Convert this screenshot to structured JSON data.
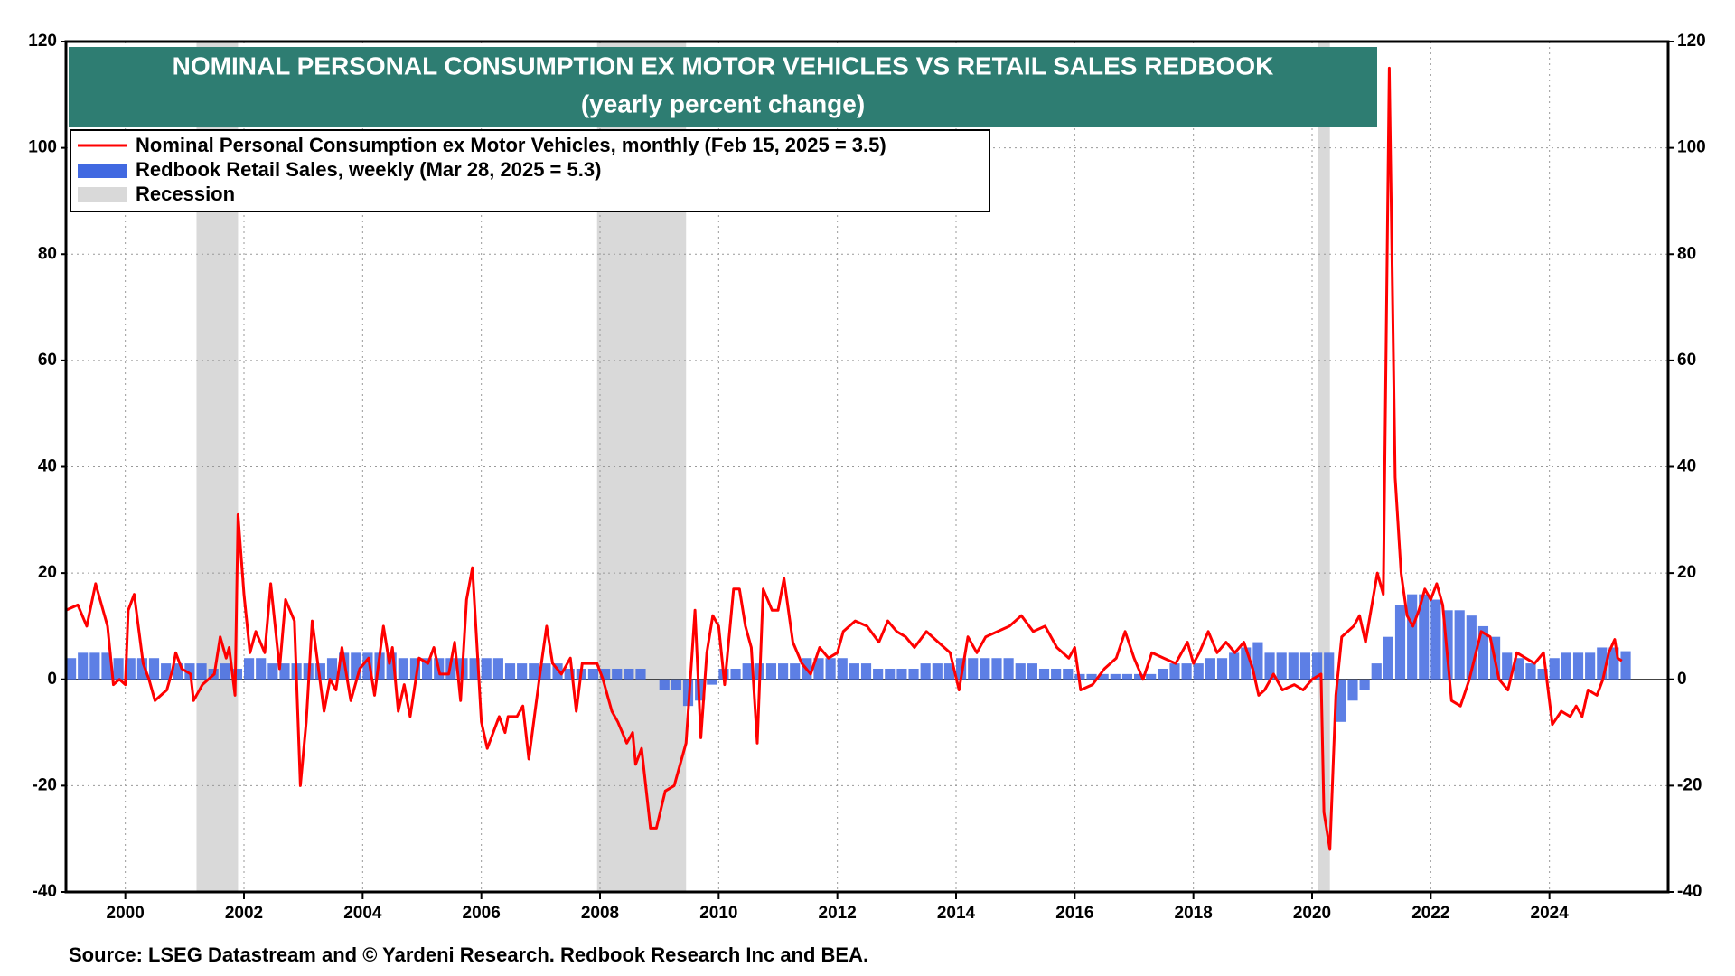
{
  "chart_data": {
    "type": "line",
    "title": "NOMINAL PERSONAL CONSUMPTION  EX MOTOR VEHICLES VS RETAIL SALES REDBOOK",
    "subtitle": "(yearly percent change)",
    "source": "Source: LSEG Datastream and © Yardeni Research. Redbook Research Inc and BEA.",
    "xlim": [
      1999,
      2026
    ],
    "xticks": [
      2000,
      2002,
      2004,
      2006,
      2008,
      2010,
      2012,
      2014,
      2016,
      2018,
      2020,
      2022,
      2024
    ],
    "ylim": [
      -40,
      120
    ],
    "yticks": [
      -40,
      -20,
      0,
      20,
      40,
      60,
      80,
      100,
      120
    ],
    "y2lim": [
      -40,
      120
    ],
    "y2ticks": [
      -40,
      -20,
      0,
      20,
      40,
      60,
      80,
      100,
      120
    ],
    "grid": true,
    "recession": {
      "name": "Recession",
      "color": "#d9d9d9",
      "periods": [
        [
          2001.2,
          2001.9
        ],
        [
          2007.95,
          2009.45
        ],
        [
          2020.1,
          2020.3
        ]
      ]
    },
    "series": [
      {
        "name": "Nominal Personal Consumption ex Motor Vehicles, monthly (Feb 15, 2025 = 3.5)",
        "type": "line",
        "color": "#ff0000",
        "x": [
          1999.0,
          1999.2,
          1999.35,
          1999.5,
          1999.7,
          1999.8,
          1999.9,
          2000.0,
          2000.05,
          2000.15,
          2000.3,
          2000.4,
          2000.5,
          2000.7,
          2000.8,
          2000.85,
          2000.95,
          2001.1,
          2001.15,
          2001.3,
          2001.5,
          2001.6,
          2001.7,
          2001.75,
          2001.85,
          2001.9,
          2002.0,
          2002.1,
          2002.2,
          2002.35,
          2002.45,
          2002.6,
          2002.7,
          2002.85,
          2002.95,
          2003.05,
          2003.15,
          2003.35,
          2003.45,
          2003.55,
          2003.65,
          2003.8,
          2003.95,
          2004.1,
          2004.2,
          2004.35,
          2004.45,
          2004.5,
          2004.6,
          2004.7,
          2004.8,
          2004.95,
          2005.1,
          2005.2,
          2005.3,
          2005.45,
          2005.55,
          2005.65,
          2005.75,
          2005.85,
          2006.0,
          2006.1,
          2006.2,
          2006.3,
          2006.4,
          2006.45,
          2006.6,
          2006.7,
          2006.8,
          2007.0,
          2007.1,
          2007.2,
          2007.35,
          2007.5,
          2007.6,
          2007.7,
          2007.95,
          2008.05,
          2008.2,
          2008.3,
          2008.45,
          2008.55,
          2008.6,
          2008.7,
          2008.85,
          2008.95,
          2009.1,
          2009.25,
          2009.45,
          2009.6,
          2009.7,
          2009.8,
          2009.9,
          2010.0,
          2010.1,
          2010.25,
          2010.35,
          2010.45,
          2010.55,
          2010.65,
          2010.75,
          2010.9,
          2011.0,
          2011.1,
          2011.25,
          2011.4,
          2011.55,
          2011.7,
          2011.85,
          2012.0,
          2012.1,
          2012.3,
          2012.5,
          2012.7,
          2012.85,
          2013.0,
          2013.15,
          2013.3,
          2013.5,
          2013.7,
          2013.9,
          2014.05,
          2014.2,
          2014.35,
          2014.5,
          2014.7,
          2014.9,
          2015.1,
          2015.3,
          2015.5,
          2015.7,
          2015.9,
          2016.0,
          2016.1,
          2016.3,
          2016.5,
          2016.7,
          2016.85,
          2017.0,
          2017.15,
          2017.3,
          2017.5,
          2017.7,
          2017.9,
          2018.0,
          2018.1,
          2018.25,
          2018.4,
          2018.55,
          2018.7,
          2018.85,
          2019.0,
          2019.1,
          2019.2,
          2019.35,
          2019.5,
          2019.7,
          2019.85,
          2020.0,
          2020.15,
          2020.2,
          2020.3,
          2020.4,
          2020.5,
          2020.7,
          2020.8,
          2020.9,
          2021.1,
          2021.2,
          2021.3,
          2021.4,
          2021.5,
          2021.6,
          2021.7,
          2021.8,
          2021.9,
          2022.0,
          2022.1,
          2022.2,
          2022.35,
          2022.5,
          2022.65,
          2022.85,
          2023.0,
          2023.15,
          2023.3,
          2023.45,
          2023.6,
          2023.75,
          2023.9,
          2024.05,
          2024.2,
          2024.35,
          2024.45,
          2024.55,
          2024.65,
          2024.8,
          2024.9,
          2025.0,
          2025.1,
          2025.15,
          2025.22
        ],
        "values": [
          13,
          14,
          10,
          18,
          10,
          -1,
          0,
          -1,
          13,
          16,
          3,
          0,
          -4,
          -2,
          2,
          5,
          2,
          1,
          -4,
          -1,
          1,
          8,
          4,
          6,
          -3,
          31,
          16,
          5,
          9,
          5,
          18,
          2,
          15,
          11,
          -20,
          -8,
          11,
          -6,
          0,
          -2,
          6,
          -4,
          2,
          4,
          -3,
          10,
          3,
          6,
          -6,
          -1,
          -7,
          4,
          3,
          6,
          1,
          1,
          7,
          -4,
          15,
          21,
          -8,
          -13,
          -10,
          -7,
          -10,
          -7,
          -7,
          -5,
          -15,
          2,
          10,
          3,
          1,
          4,
          -6,
          3,
          3,
          0,
          -6,
          -8,
          -12,
          -10,
          -16,
          -13,
          -28,
          -28,
          -21,
          -20,
          -12,
          13,
          -11,
          5,
          12,
          10,
          -1,
          17,
          17,
          10,
          6,
          -12,
          17,
          13,
          13,
          19,
          7,
          3,
          1,
          6,
          4,
          5,
          9,
          11,
          10,
          7,
          11,
          9,
          8,
          6,
          9,
          7,
          5,
          -2,
          8,
          5,
          8,
          9,
          10,
          12,
          9,
          10,
          6,
          4,
          6,
          -2,
          -1,
          2,
          4,
          9,
          4,
          0,
          5,
          4,
          3,
          7,
          3,
          5,
          9,
          5,
          7,
          5,
          7,
          2,
          -3,
          -2,
          1,
          -2,
          -1,
          -2,
          0,
          1,
          -25,
          -32,
          -3,
          8,
          10,
          12,
          7,
          20,
          16,
          115,
          38,
          20,
          12,
          10,
          13,
          17,
          15,
          18,
          14,
          -4,
          -5,
          0,
          9,
          8,
          0,
          -2,
          5,
          4,
          3,
          5,
          -8.5,
          -6,
          -7,
          -5,
          -7,
          -2,
          -3,
          0,
          5,
          7.5,
          4,
          3.5
        ]
      },
      {
        "name": "Redbook Retail Sales, weekly (Mar 28, 2025 = 5.3)",
        "type": "bar",
        "color": "#4169e1",
        "x": [
          1999.0,
          1999.2,
          1999.4,
          1999.6,
          1999.8,
          2000.0,
          2000.2,
          2000.4,
          2000.6,
          2000.8,
          2001.0,
          2001.2,
          2001.4,
          2001.6,
          2001.8,
          2002.0,
          2002.2,
          2002.4,
          2002.6,
          2002.8,
          2003.0,
          2003.2,
          2003.4,
          2003.6,
          2003.8,
          2004.0,
          2004.2,
          2004.4,
          2004.6,
          2004.8,
          2005.0,
          2005.2,
          2005.4,
          2005.6,
          2005.8,
          2006.0,
          2006.2,
          2006.4,
          2006.6,
          2006.8,
          2007.0,
          2007.2,
          2007.4,
          2007.6,
          2007.8,
          2008.0,
          2008.2,
          2008.4,
          2008.6,
          2008.8,
          2009.0,
          2009.2,
          2009.4,
          2009.6,
          2009.8,
          2010.0,
          2010.2,
          2010.4,
          2010.6,
          2010.8,
          2011.0,
          2011.2,
          2011.4,
          2011.6,
          2011.8,
          2012.0,
          2012.2,
          2012.4,
          2012.6,
          2012.8,
          2013.0,
          2013.2,
          2013.4,
          2013.6,
          2013.8,
          2014.0,
          2014.2,
          2014.4,
          2014.6,
          2014.8,
          2015.0,
          2015.2,
          2015.4,
          2015.6,
          2015.8,
          2016.0,
          2016.2,
          2016.4,
          2016.6,
          2016.8,
          2017.0,
          2017.2,
          2017.4,
          2017.6,
          2017.8,
          2018.0,
          2018.2,
          2018.4,
          2018.6,
          2018.8,
          2019.0,
          2019.2,
          2019.4,
          2019.6,
          2019.8,
          2020.0,
          2020.2,
          2020.4,
          2020.6,
          2020.8,
          2021.0,
          2021.2,
          2021.4,
          2021.6,
          2021.8,
          2022.0,
          2022.2,
          2022.4,
          2022.6,
          2022.8,
          2023.0,
          2023.2,
          2023.4,
          2023.6,
          2023.8,
          2024.0,
          2024.2,
          2024.4,
          2024.6,
          2024.8,
          2025.0,
          2025.2
        ],
        "values": [
          4,
          5,
          5,
          5,
          4,
          4,
          4,
          4,
          3,
          3,
          3,
          3,
          2,
          3,
          2,
          4,
          4,
          3,
          3,
          3,
          3,
          3,
          4,
          5,
          5,
          5,
          5,
          5,
          4,
          4,
          4,
          4,
          4,
          4,
          4,
          4,
          4,
          3,
          3,
          3,
          3,
          3,
          2,
          2,
          2,
          2,
          2,
          2,
          2,
          0,
          -2,
          -2,
          -5,
          -4,
          -1,
          2,
          2,
          3,
          3,
          3,
          3,
          3,
          4,
          4,
          4,
          4,
          3,
          3,
          2,
          2,
          2,
          2,
          3,
          3,
          3,
          4,
          4,
          4,
          4,
          4,
          3,
          3,
          2,
          2,
          2,
          1,
          1,
          1,
          1,
          1,
          1,
          1,
          2,
          3,
          3,
          3,
          4,
          4,
          5,
          6,
          7,
          5,
          5,
          5,
          5,
          5,
          5,
          -8,
          -4,
          -2,
          3,
          8,
          14,
          16,
          16,
          15,
          13,
          13,
          12,
          10,
          8,
          5,
          4,
          3,
          2,
          4,
          5,
          5,
          5,
          6,
          6,
          5.3
        ]
      }
    ]
  }
}
